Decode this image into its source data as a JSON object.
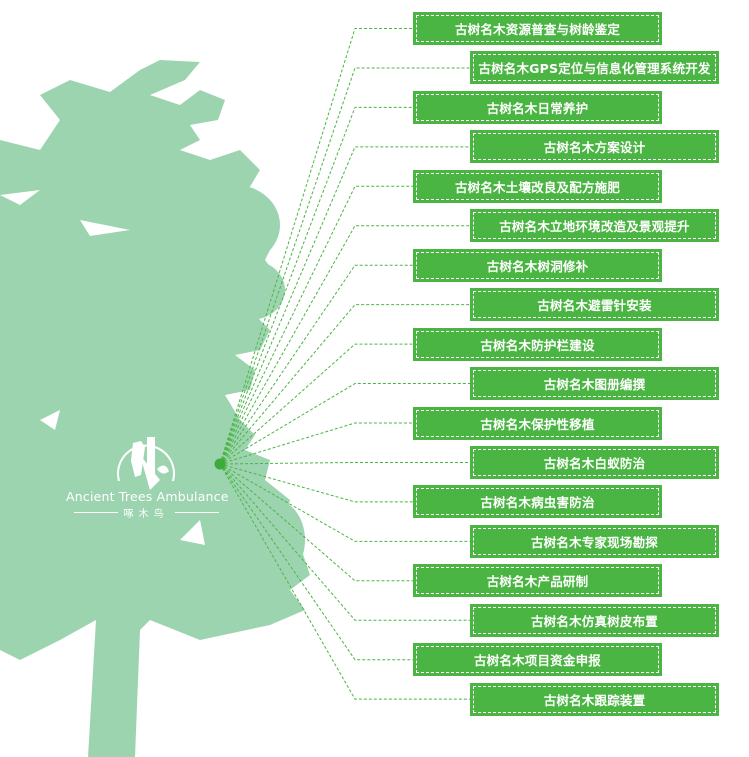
{
  "colors": {
    "tree": "#9dd4b0",
    "box": "#4bb543",
    "line": "#4bb543",
    "hub": "#3daa3a"
  },
  "logo": {
    "title_en": "Ancient Trees Ambulance",
    "title_cn": "啄木鸟"
  },
  "services": [
    "古树名木资源普查与树龄鉴定",
    "古树名木GPS定位与信息化管理系统开发",
    "古树名木日常养护",
    "古树名木方案设计",
    "古树名木土壤改良及配方施肥",
    "古树名木立地环境改造及景观提升",
    "古树名木树洞修补",
    "古树名木避雷针安装",
    "古树名木防护栏建设",
    "古树名木图册编撰",
    "古树名木保护性移植",
    "古树名木白蚁防治",
    "古树名木病虫害防治",
    "古树名木专家现场勘探",
    "古树名木产品研制",
    "古树名木仿真树皮布置",
    "古树名木项目资金申报",
    "古树名木跟踪装置"
  ]
}
